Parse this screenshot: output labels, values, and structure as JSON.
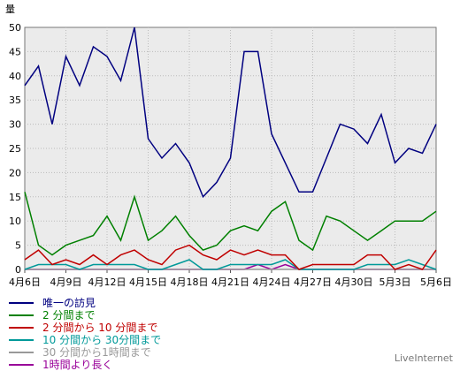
{
  "chart_data": {
    "type": "line",
    "ylabel": "量",
    "ylim": [
      0,
      50
    ],
    "y_ticks": [
      "0",
      "5",
      "10",
      "15",
      "20",
      "25",
      "30",
      "35",
      "40",
      "45",
      "50"
    ],
    "x_tick_labels": [
      "4月6日",
      "4月9日",
      "4月12日",
      "4月15日",
      "4月18日",
      "4月21日",
      "4月24日",
      "4月27日",
      "4月30日",
      "5月3日",
      "5月6日"
    ],
    "grid": true,
    "legend_placement": "bottom-left",
    "series": [
      {
        "name": "唯一の訪見",
        "color": "#000080",
        "values": [
          38,
          42,
          30,
          44,
          38,
          46,
          44,
          39,
          50,
          27,
          23,
          26,
          22,
          15,
          18,
          23,
          45,
          45,
          28,
          22,
          16,
          16,
          23,
          30,
          29,
          26,
          32,
          22,
          25,
          24,
          30
        ]
      },
      {
        "name": "2 分間まで",
        "color": "#008000",
        "values": [
          16,
          5,
          3,
          5,
          6,
          7,
          11,
          6,
          15,
          6,
          8,
          11,
          7,
          4,
          5,
          8,
          9,
          8,
          12,
          14,
          6,
          4,
          11,
          10,
          8,
          6,
          8,
          10,
          10,
          10,
          12
        ]
      },
      {
        "name": "2 分間から 10 分間まで",
        "color": "#c00000",
        "values": [
          2,
          4,
          1,
          2,
          1,
          3,
          1,
          3,
          4,
          2,
          1,
          4,
          5,
          3,
          2,
          4,
          3,
          4,
          3,
          3,
          0,
          1,
          1,
          1,
          1,
          3,
          3,
          0,
          1,
          0,
          4
        ]
      },
      {
        "name": "10 分間から 30分間まで",
        "color": "#009999",
        "values": [
          0,
          1,
          1,
          1,
          0,
          1,
          1,
          1,
          1,
          0,
          0,
          1,
          2,
          0,
          0,
          1,
          1,
          1,
          1,
          2,
          0,
          0,
          0,
          0,
          0,
          1,
          1,
          1,
          2,
          1,
          0
        ]
      },
      {
        "name": "30 分間から1時間まで",
        "color": "#999999",
        "values": [
          0,
          0,
          0,
          0,
          0,
          0,
          0,
          0,
          0,
          0,
          0,
          0,
          0,
          0,
          0,
          0,
          0,
          0,
          0,
          0,
          0,
          0,
          0,
          0,
          0,
          0,
          0,
          0,
          0,
          0,
          0
        ]
      },
      {
        "name": "1時間より長く",
        "color": "#990099",
        "values": [
          0,
          0,
          0,
          0,
          0,
          0,
          0,
          0,
          0,
          0,
          0,
          0,
          0,
          0,
          0,
          0,
          0,
          1,
          0,
          1,
          0,
          0,
          0,
          0,
          0,
          0,
          0,
          0,
          0,
          0,
          0
        ]
      }
    ]
  },
  "credit": "LiveInternet"
}
